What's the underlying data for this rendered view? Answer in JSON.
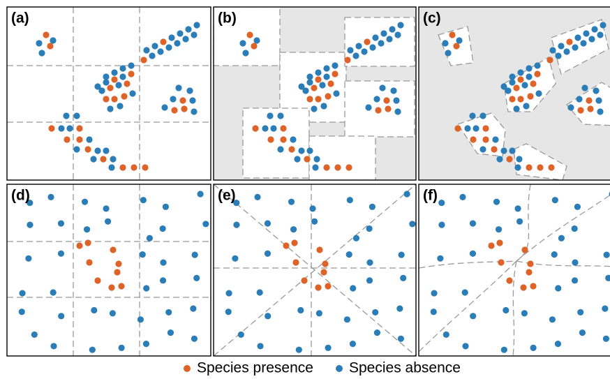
{
  "panels": [
    {
      "label": "(a)"
    },
    {
      "label": "(b)"
    },
    {
      "label": "(c)"
    },
    {
      "label": "(d)"
    },
    {
      "label": "(e)"
    },
    {
      "label": "(f)"
    }
  ],
  "legend": [
    {
      "label": "Species presence",
      "color": "#dd6329"
    },
    {
      "label": "Species absence",
      "color": "#2b7db8"
    }
  ]
}
